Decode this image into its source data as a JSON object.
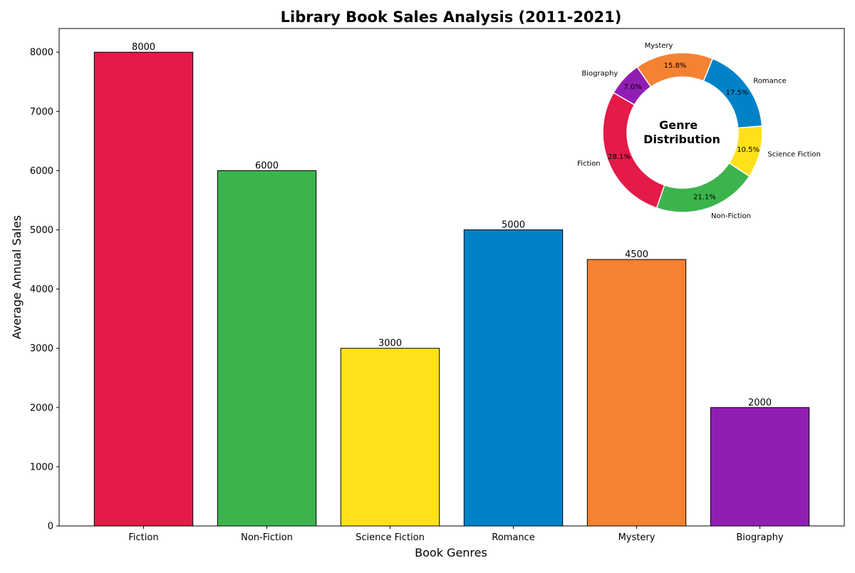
{
  "chart_data": [
    {
      "type": "bar",
      "title": "Library Book Sales Analysis (2011-2021)",
      "xlabel": "Book Genres",
      "ylabel": "Average Annual Sales",
      "categories": [
        "Fiction",
        "Non-Fiction",
        "Science Fiction",
        "Romance",
        "Mystery",
        "Biography"
      ],
      "values": [
        8000,
        6000,
        3000,
        5000,
        4500,
        2000
      ],
      "value_labels": [
        "8000",
        "6000",
        "3000",
        "5000",
        "4500",
        "2000"
      ],
      "colors": [
        "#e41a49",
        "#3cb44e",
        "#ffe119",
        "#0082c8",
        "#f58231",
        "#911eb4"
      ],
      "ylim": [
        0,
        8400
      ],
      "yticks": [
        0,
        1000,
        2000,
        3000,
        4000,
        5000,
        6000,
        7000,
        8000
      ],
      "grid": false
    },
    {
      "type": "pie",
      "title": "Genre\nDistribution",
      "title_lines": [
        "Genre",
        "Distribution"
      ],
      "labels": [
        "Fiction",
        "Non-Fiction",
        "Science Fiction",
        "Romance",
        "Mystery",
        "Biography"
      ],
      "values": [
        8000,
        6000,
        3000,
        5000,
        4500,
        2000
      ],
      "percent_labels": [
        "28.1%",
        "21.1%",
        "10.5%",
        "17.5%",
        "15.8%",
        "7.0%"
      ],
      "colors": [
        "#e41a49",
        "#3cb44e",
        "#ffe119",
        "#0082c8",
        "#f58231",
        "#911eb4"
      ],
      "donut": true,
      "start_angle_deg": 150
    }
  ]
}
